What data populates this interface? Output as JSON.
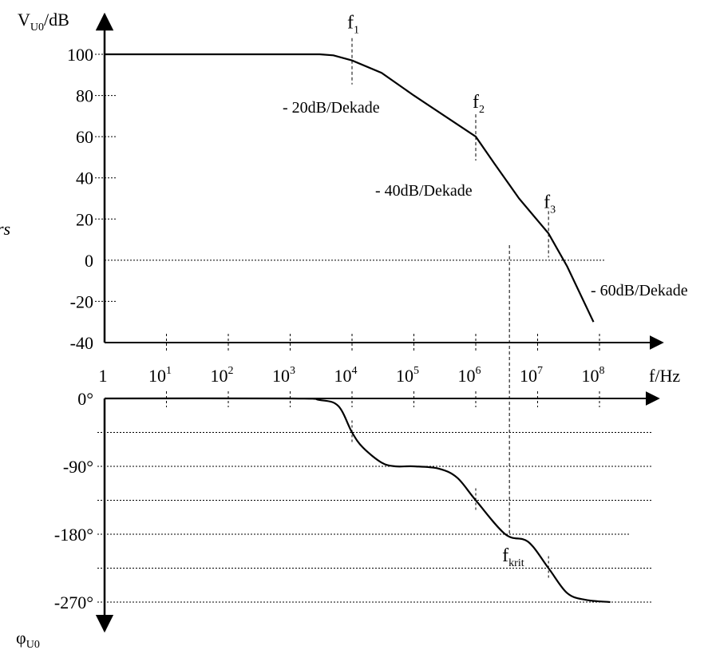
{
  "chart_data": [
    {
      "type": "line",
      "title": "",
      "ylabel": {
        "main": "V",
        "sub": "U0",
        "unit": "/dB"
      },
      "xlabel": "f/Hz",
      "xscale": "log",
      "grid": "dotted horizontal lines",
      "x_ticks": [
        {
          "base": "1",
          "exp": ""
        },
        {
          "base": "10",
          "exp": "1"
        },
        {
          "base": "10",
          "exp": "2"
        },
        {
          "base": "10",
          "exp": "3"
        },
        {
          "base": "10",
          "exp": "4"
        },
        {
          "base": "10",
          "exp": "5"
        },
        {
          "base": "10",
          "exp": "6"
        },
        {
          "base": "10",
          "exp": "7"
        },
        {
          "base": "10",
          "exp": "8"
        }
      ],
      "y_ticks": [
        "100",
        "80",
        "60",
        "40",
        "20",
        "0",
        "-20",
        "-40"
      ],
      "ylim": [
        -40,
        100
      ],
      "series": [
        {
          "points": [
            [
              1,
              100
            ],
            [
              3000,
              100
            ],
            [
              5000,
              99.5
            ],
            [
              10000,
              97
            ],
            [
              30000,
              91
            ],
            [
              100000,
              80
            ],
            [
              1000000,
              60
            ],
            [
              2000000,
              47
            ],
            [
              5000000,
              30
            ],
            [
              15000000,
              13
            ],
            [
              30000000,
              -3
            ],
            [
              80000000,
              -30
            ]
          ]
        }
      ],
      "markers": [
        {
          "label": "f",
          "sub": "1",
          "x": 10000
        },
        {
          "label": "f",
          "sub": "2",
          "x": 1000000
        },
        {
          "label": "f",
          "sub": "3",
          "x": 15000000
        }
      ],
      "annotations": [
        "- 20dB/Dekade",
        "- 40dB/Dekade",
        "- 60dB/Dekade"
      ]
    },
    {
      "type": "line",
      "ylabel": {
        "main": "φ",
        "sub": "U0"
      },
      "y_ticks": [
        "0°",
        "-90°",
        "-180°",
        "-270°"
      ],
      "ylim": [
        -270,
        0
      ],
      "series": [
        {
          "points": [
            [
              1,
              0
            ],
            [
              1000,
              0
            ],
            [
              3000,
              -2
            ],
            [
              6000,
              -10
            ],
            [
              10000,
              -45
            ],
            [
              15000,
              -65
            ],
            [
              30000,
              -85
            ],
            [
              50000,
              -90
            ],
            [
              100000,
              -90
            ],
            [
              250000,
              -93
            ],
            [
              500000,
              -105
            ],
            [
              1000000,
              -135
            ],
            [
              3000000,
              -180
            ],
            [
              7000000,
              -190
            ],
            [
              15000000,
              -225
            ],
            [
              30000000,
              -258
            ],
            [
              60000000,
              -267
            ],
            [
              150000000,
              -270
            ]
          ]
        }
      ],
      "markers": [
        {
          "label": "f",
          "sub": "krit",
          "x": 3500000
        }
      ]
    }
  ],
  "page_fragments": {
    "left_edge_text": "rs"
  }
}
